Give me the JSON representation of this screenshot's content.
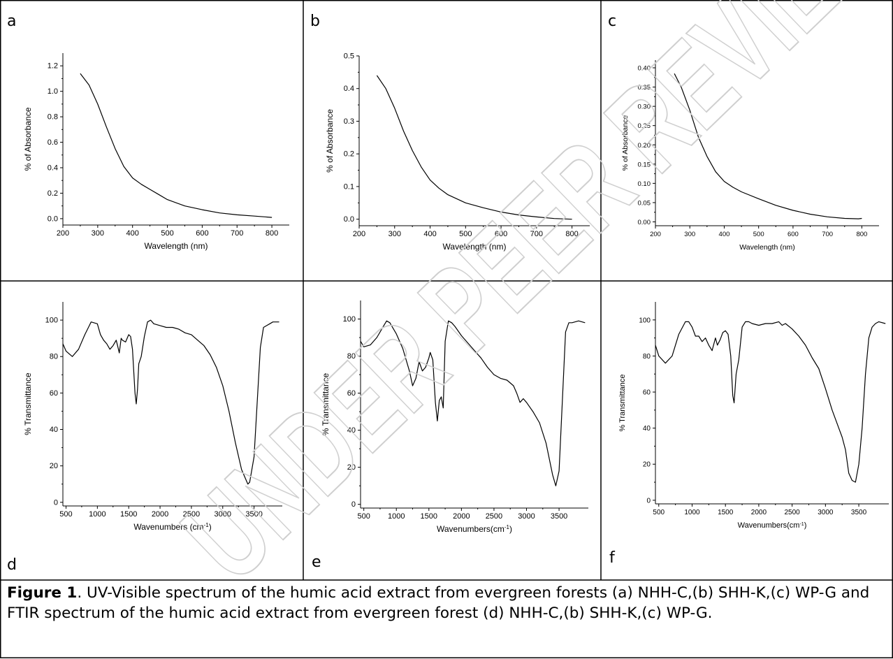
{
  "panels": {
    "a": {
      "letter": "a"
    },
    "b": {
      "letter": "b"
    },
    "c": {
      "letter": "c"
    },
    "d": {
      "letter": "d"
    },
    "e": {
      "letter": "e"
    },
    "f": {
      "letter": "f"
    }
  },
  "caption": {
    "label": "Figure 1",
    "text": ". UV-Visible spectrum of the humic acid extract from evergreen forests (a) NHH-C,(b) SHH-K,(c) WP-G and FTIR spectrum of the humic acid extract from evergreen forest (d) NHH-C,(b) SHH-K,(c) WP-G."
  },
  "watermark": {
    "text": "UNDER PEER REVIEW"
  },
  "chart_data": [
    {
      "panel": "a",
      "type": "line",
      "xlabel": "Wavelength (nm)",
      "ylabel": "% of Absorbance",
      "xlim": [
        200,
        850
      ],
      "ylim": [
        -0.05,
        1.3
      ],
      "xticks": [
        200,
        300,
        400,
        500,
        600,
        700,
        800
      ],
      "xtick_labels": [
        "200",
        "300",
        "400",
        "500",
        "600",
        "700",
        "800"
      ],
      "yticks": [
        0.0,
        0.2,
        0.4,
        0.6,
        0.8,
        1.0,
        1.2
      ],
      "ytick_labels": [
        "0.0",
        "0.2",
        "0.4",
        "0.6",
        "0.8",
        "1.0",
        "1.2"
      ],
      "series": [
        {
          "x": [
            250,
            275,
            300,
            325,
            350,
            375,
            400,
            425,
            450,
            475,
            500,
            550,
            600,
            650,
            700,
            750,
            800
          ],
          "y": [
            1.14,
            1.05,
            0.9,
            0.72,
            0.55,
            0.41,
            0.32,
            0.27,
            0.23,
            0.19,
            0.15,
            0.1,
            0.07,
            0.045,
            0.03,
            0.02,
            0.01
          ]
        }
      ]
    },
    {
      "panel": "b",
      "type": "line",
      "xlabel": "Wavelength (nm)",
      "ylabel": "% of Absorbance",
      "xlim": [
        200,
        850
      ],
      "ylim": [
        -0.02,
        0.5
      ],
      "xticks": [
        200,
        300,
        400,
        500,
        600,
        700,
        800
      ],
      "xtick_labels": [
        "200",
        "300",
        "400",
        "500",
        "600",
        "700",
        "800"
      ],
      "yticks": [
        0.0,
        0.1,
        0.2,
        0.3,
        0.4,
        0.5
      ],
      "ytick_labels": [
        "0.0",
        "0.1",
        "0.2",
        "0.3",
        "0.4",
        "0.5"
      ],
      "series": [
        {
          "x": [
            250,
            275,
            300,
            325,
            350,
            375,
            400,
            425,
            450,
            500,
            550,
            600,
            650,
            700,
            750,
            800
          ],
          "y": [
            0.44,
            0.4,
            0.34,
            0.27,
            0.21,
            0.16,
            0.12,
            0.095,
            0.075,
            0.05,
            0.035,
            0.022,
            0.013,
            0.007,
            0.002,
            0.0
          ]
        }
      ]
    },
    {
      "panel": "c",
      "type": "line",
      "xlabel": "Wavelength (nm)",
      "ylabel": "% of Absorbance",
      "xlim": [
        200,
        850
      ],
      "ylim": [
        -0.01,
        0.42
      ],
      "xticks": [
        200,
        300,
        400,
        500,
        600,
        700,
        800
      ],
      "xtick_labels": [
        "200",
        "300",
        "400",
        "500",
        "600",
        "700",
        "800"
      ],
      "yticks": [
        0.0,
        0.05,
        0.1,
        0.15,
        0.2,
        0.25,
        0.3,
        0.35,
        0.4
      ],
      "ytick_labels": [
        "0.00",
        "0.05",
        "0.10",
        "0.15",
        "0.20",
        "0.25",
        "0.30",
        "0.35",
        "0.40"
      ],
      "series": [
        {
          "x": [
            255,
            275,
            300,
            325,
            350,
            375,
            400,
            425,
            450,
            500,
            550,
            600,
            650,
            700,
            750,
            790,
            800
          ],
          "y": [
            0.385,
            0.35,
            0.29,
            0.22,
            0.17,
            0.13,
            0.105,
            0.09,
            0.078,
            0.06,
            0.043,
            0.03,
            0.02,
            0.013,
            0.009,
            0.008,
            0.009
          ]
        }
      ]
    },
    {
      "panel": "d",
      "type": "line",
      "xlabel": "Wavenumbers (cm",
      "xlabel_sup": "-1",
      "xlabel_end": ")",
      "ylabel": "% Transmittance",
      "xlim": [
        450,
        3950
      ],
      "ylim": [
        -2,
        110
      ],
      "xticks": [
        500,
        1000,
        1500,
        2000,
        2500,
        3000,
        3500
      ],
      "xtick_labels": [
        "500",
        "1000",
        "1500",
        "2000",
        "2500",
        "3000",
        "3500"
      ],
      "yticks": [
        0,
        20,
        40,
        60,
        80,
        100
      ],
      "ytick_labels": [
        "0",
        "20",
        "40",
        "60",
        "80",
        "100"
      ],
      "series": [
        {
          "x": [
            450,
            500,
            600,
            700,
            800,
            900,
            1000,
            1050,
            1100,
            1150,
            1200,
            1250,
            1300,
            1330,
            1350,
            1380,
            1400,
            1450,
            1500,
            1530,
            1560,
            1600,
            1620,
            1640,
            1660,
            1700,
            1750,
            1800,
            1850,
            1900,
            2000,
            2100,
            2200,
            2300,
            2400,
            2500,
            2600,
            2700,
            2800,
            2900,
            3000,
            3100,
            3200,
            3300,
            3400,
            3430,
            3500,
            3550,
            3600,
            3650,
            3700,
            3750,
            3800,
            3850,
            3900
          ],
          "y": [
            87,
            83,
            80,
            84,
            92,
            99,
            98,
            92,
            89,
            87,
            84,
            86,
            89,
            85,
            82,
            90,
            89,
            88,
            92,
            91,
            84,
            60,
            54,
            62,
            76,
            80,
            91,
            99,
            100,
            98,
            97,
            96,
            96,
            95,
            93,
            92,
            89,
            86,
            81,
            74,
            64,
            50,
            33,
            18,
            10,
            11,
            25,
            55,
            85,
            96,
            97,
            98,
            99,
            99,
            99
          ]
        }
      ]
    },
    {
      "panel": "e",
      "type": "line",
      "xlabel": "Wavenumbers(cm",
      "xlabel_sup": "-1",
      "xlabel_end": ")",
      "ylabel": "% Transmittance",
      "xlim": [
        450,
        3950
      ],
      "ylim": [
        -2,
        110
      ],
      "xticks": [
        500,
        1000,
        1500,
        2000,
        2500,
        3000,
        3500
      ],
      "xtick_labels": [
        "500",
        "1000",
        "1500",
        "2000",
        "2500",
        "3000",
        "3500"
      ],
      "yticks": [
        0,
        20,
        40,
        60,
        80,
        100
      ],
      "ytick_labels": [
        "0",
        "20",
        "40",
        "60",
        "80",
        "100"
      ],
      "series": [
        {
          "x": [
            450,
            500,
            600,
            700,
            800,
            850,
            900,
            1000,
            1100,
            1200,
            1250,
            1300,
            1350,
            1400,
            1450,
            1500,
            1520,
            1560,
            1600,
            1630,
            1660,
            1690,
            1720,
            1750,
            1800,
            1850,
            1900,
            2000,
            2100,
            2200,
            2300,
            2400,
            2500,
            2600,
            2700,
            2800,
            2850,
            2900,
            2950,
            3000,
            3100,
            3200,
            3300,
            3400,
            3450,
            3500,
            3550,
            3600,
            3650,
            3700,
            3800,
            3900
          ],
          "y": [
            88,
            85,
            86,
            90,
            96,
            99,
            98,
            92,
            84,
            72,
            64,
            68,
            77,
            72,
            74,
            79,
            82,
            78,
            55,
            45,
            56,
            58,
            52,
            88,
            99,
            98,
            96,
            91,
            87,
            83,
            79,
            74,
            70,
            68,
            67,
            64,
            60,
            55,
            57,
            55,
            50,
            44,
            33,
            16,
            10,
            18,
            55,
            93,
            98,
            98,
            99,
            98
          ]
        }
      ]
    },
    {
      "panel": "f",
      "type": "line",
      "xlabel": "Wavenumbers(cm",
      "xlabel_sup": "-1",
      "xlabel_end": ")",
      "ylabel": "% Transmittance",
      "xlim": [
        450,
        3950
      ],
      "ylim": [
        -2,
        110
      ],
      "xticks": [
        500,
        1000,
        1500,
        2000,
        2500,
        3000,
        3500
      ],
      "xtick_labels": [
        "500",
        "1000",
        "1500",
        "2000",
        "2500",
        "3000",
        "3500"
      ],
      "yticks": [
        0,
        20,
        40,
        60,
        80,
        100
      ],
      "ytick_labels": [
        "0",
        "20",
        "40",
        "60",
        "80",
        "100"
      ],
      "series": [
        {
          "x": [
            450,
            500,
            600,
            700,
            800,
            900,
            950,
            1000,
            1050,
            1100,
            1150,
            1200,
            1250,
            1300,
            1350,
            1380,
            1420,
            1460,
            1500,
            1540,
            1580,
            1610,
            1630,
            1660,
            1700,
            1750,
            1800,
            1850,
            1900,
            2000,
            2100,
            2200,
            2300,
            2350,
            2400,
            2500,
            2600,
            2700,
            2800,
            2900,
            3000,
            3100,
            3200,
            3250,
            3300,
            3350,
            3400,
            3450,
            3500,
            3550,
            3600,
            3650,
            3700,
            3750,
            3800,
            3900
          ],
          "y": [
            86,
            80,
            76,
            80,
            92,
            99,
            99,
            96,
            91,
            91,
            88,
            90,
            86,
            83,
            90,
            86,
            89,
            93,
            94,
            92,
            80,
            58,
            54,
            70,
            78,
            96,
            99,
            99,
            98,
            97,
            98,
            98,
            99,
            97,
            98,
            95,
            91,
            86,
            79,
            73,
            62,
            50,
            40,
            35,
            28,
            15,
            11,
            10,
            20,
            40,
            70,
            90,
            96,
            98,
            99,
            98
          ]
        }
      ]
    }
  ]
}
